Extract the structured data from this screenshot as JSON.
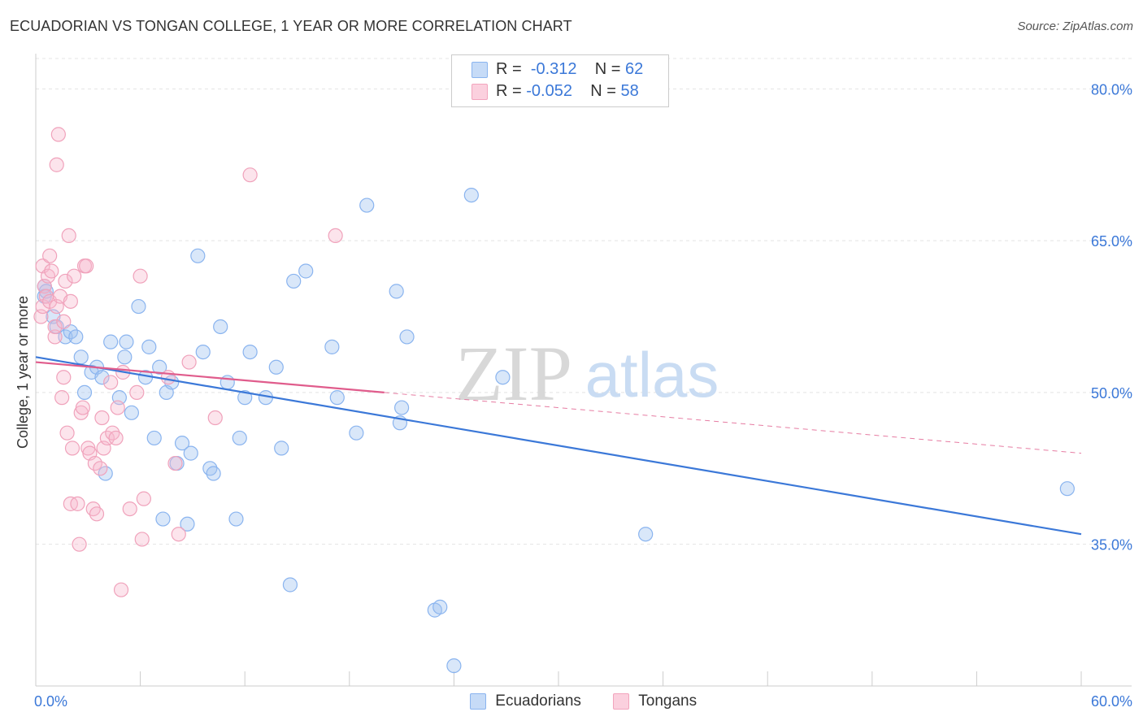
{
  "title": "ECUADORIAN VS TONGAN COLLEGE, 1 YEAR OR MORE CORRELATION CHART",
  "source": "Source: ZipAtlas.com",
  "watermark": {
    "zip": "ZIP",
    "atlas": "atlas"
  },
  "legend": {
    "r_label": "R =",
    "n_label": "N =",
    "rows": [
      {
        "r": "-0.312",
        "n": "62",
        "color": "#8ab4ef",
        "fill": "#c6dbf7"
      },
      {
        "r": "-0.052",
        "n": "58",
        "color": "#f2a4bd",
        "fill": "#fbd0de"
      }
    ]
  },
  "bottom_legend": [
    "Ecuadorians",
    "Tongans"
  ],
  "chart_data": {
    "type": "scatter",
    "title": "ECUADORIAN VS TONGAN COLLEGE, 1 YEAR OR MORE CORRELATION CHART",
    "xlabel": "",
    "ylabel": "College, 1 year or more",
    "xlim": [
      0,
      60
    ],
    "ylim": [
      21,
      83
    ],
    "x_tick_labels": [
      {
        "value": 0,
        "label": "0.0%"
      },
      {
        "value": 60,
        "label": "60.0%"
      }
    ],
    "y_tick_labels": [
      {
        "value": 80,
        "label": "80.0%"
      },
      {
        "value": 65,
        "label": "65.0%"
      },
      {
        "value": 50,
        "label": "50.0%"
      },
      {
        "value": 35,
        "label": "35.0%"
      }
    ],
    "series": [
      {
        "name": "Ecuadorians",
        "color": "#3b78d8",
        "r": -0.312,
        "n": 62,
        "trend": {
          "x": [
            0,
            60
          ],
          "y": [
            53.5,
            36.0
          ],
          "dashed_from": null
        },
        "points": [
          [
            0.5,
            60.5
          ],
          [
            0.5,
            59.5
          ],
          [
            0.6,
            60.0
          ],
          [
            1.0,
            57.5
          ],
          [
            1.2,
            56.5
          ],
          [
            1.7,
            55.5
          ],
          [
            2.0,
            56.0
          ],
          [
            2.3,
            55.5
          ],
          [
            2.6,
            53.5
          ],
          [
            2.8,
            50.0
          ],
          [
            3.2,
            52.0
          ],
          [
            3.5,
            52.5
          ],
          [
            3.8,
            51.5
          ],
          [
            4.0,
            42.0
          ],
          [
            4.3,
            55.0
          ],
          [
            4.8,
            49.5
          ],
          [
            5.1,
            53.5
          ],
          [
            5.2,
            55.0
          ],
          [
            5.5,
            48.0
          ],
          [
            5.9,
            58.5
          ],
          [
            6.3,
            51.5
          ],
          [
            6.5,
            54.5
          ],
          [
            6.8,
            45.5
          ],
          [
            7.1,
            52.5
          ],
          [
            7.3,
            37.5
          ],
          [
            7.5,
            50.0
          ],
          [
            7.8,
            51.0
          ],
          [
            8.1,
            43.0
          ],
          [
            8.4,
            45.0
          ],
          [
            8.7,
            37.0
          ],
          [
            8.9,
            44.0
          ],
          [
            9.3,
            63.5
          ],
          [
            9.6,
            54.0
          ],
          [
            10.0,
            42.5
          ],
          [
            10.2,
            42.0
          ],
          [
            10.6,
            56.5
          ],
          [
            11.0,
            51.0
          ],
          [
            11.5,
            37.5
          ],
          [
            11.7,
            45.5
          ],
          [
            12.0,
            49.5
          ],
          [
            12.3,
            54.0
          ],
          [
            13.2,
            49.5
          ],
          [
            13.8,
            52.5
          ],
          [
            14.1,
            44.5
          ],
          [
            14.6,
            31.0
          ],
          [
            14.8,
            61.0
          ],
          [
            15.5,
            62.0
          ],
          [
            17.0,
            54.5
          ],
          [
            17.3,
            49.5
          ],
          [
            18.4,
            46.0
          ],
          [
            19.0,
            68.5
          ],
          [
            20.7,
            60.0
          ],
          [
            20.9,
            47.0
          ],
          [
            21.0,
            48.5
          ],
          [
            21.3,
            55.5
          ],
          [
            22.9,
            28.5
          ],
          [
            23.2,
            28.8
          ],
          [
            24.0,
            23.0
          ],
          [
            25.0,
            69.5
          ],
          [
            26.8,
            51.5
          ],
          [
            35.0,
            36.0
          ],
          [
            59.2,
            40.5
          ]
        ]
      },
      {
        "name": "Tongans",
        "color": "#e05c8c",
        "r": -0.052,
        "n": 58,
        "trend": {
          "x": [
            0,
            60
          ],
          "y": [
            53.0,
            44.0
          ],
          "dashed_from": 20
        },
        "points": [
          [
            0.3,
            57.5
          ],
          [
            0.4,
            58.5
          ],
          [
            0.4,
            62.5
          ],
          [
            0.5,
            60.5
          ],
          [
            0.6,
            59.5
          ],
          [
            0.7,
            61.5
          ],
          [
            0.8,
            59.0
          ],
          [
            0.8,
            63.5
          ],
          [
            0.9,
            62.0
          ],
          [
            1.1,
            55.5
          ],
          [
            1.1,
            56.5
          ],
          [
            1.2,
            58.5
          ],
          [
            1.2,
            72.5
          ],
          [
            1.3,
            75.5
          ],
          [
            1.4,
            59.5
          ],
          [
            1.5,
            49.5
          ],
          [
            1.6,
            51.5
          ],
          [
            1.6,
            57.0
          ],
          [
            1.7,
            61.0
          ],
          [
            1.8,
            46.0
          ],
          [
            1.9,
            65.5
          ],
          [
            2.0,
            39.0
          ],
          [
            2.0,
            59.0
          ],
          [
            2.1,
            44.5
          ],
          [
            2.2,
            61.5
          ],
          [
            2.4,
            39.0
          ],
          [
            2.5,
            35.0
          ],
          [
            2.6,
            48.0
          ],
          [
            2.7,
            48.5
          ],
          [
            2.8,
            62.5
          ],
          [
            2.9,
            62.5
          ],
          [
            3.0,
            44.5
          ],
          [
            3.1,
            44.0
          ],
          [
            3.3,
            38.5
          ],
          [
            3.4,
            43.0
          ],
          [
            3.5,
            38.0
          ],
          [
            3.7,
            42.5
          ],
          [
            3.8,
            47.5
          ],
          [
            3.9,
            44.5
          ],
          [
            4.1,
            45.5
          ],
          [
            4.3,
            51.0
          ],
          [
            4.4,
            46.0
          ],
          [
            4.6,
            45.5
          ],
          [
            4.7,
            48.5
          ],
          [
            4.9,
            30.5
          ],
          [
            5.0,
            52.0
          ],
          [
            5.4,
            38.5
          ],
          [
            5.8,
            50.0
          ],
          [
            6.0,
            61.5
          ],
          [
            6.1,
            35.5
          ],
          [
            6.2,
            39.5
          ],
          [
            7.6,
            51.5
          ],
          [
            8.0,
            43.0
          ],
          [
            8.2,
            36.0
          ],
          [
            8.8,
            53.0
          ],
          [
            10.3,
            47.5
          ],
          [
            12.3,
            71.5
          ],
          [
            17.2,
            65.5
          ]
        ]
      }
    ]
  }
}
